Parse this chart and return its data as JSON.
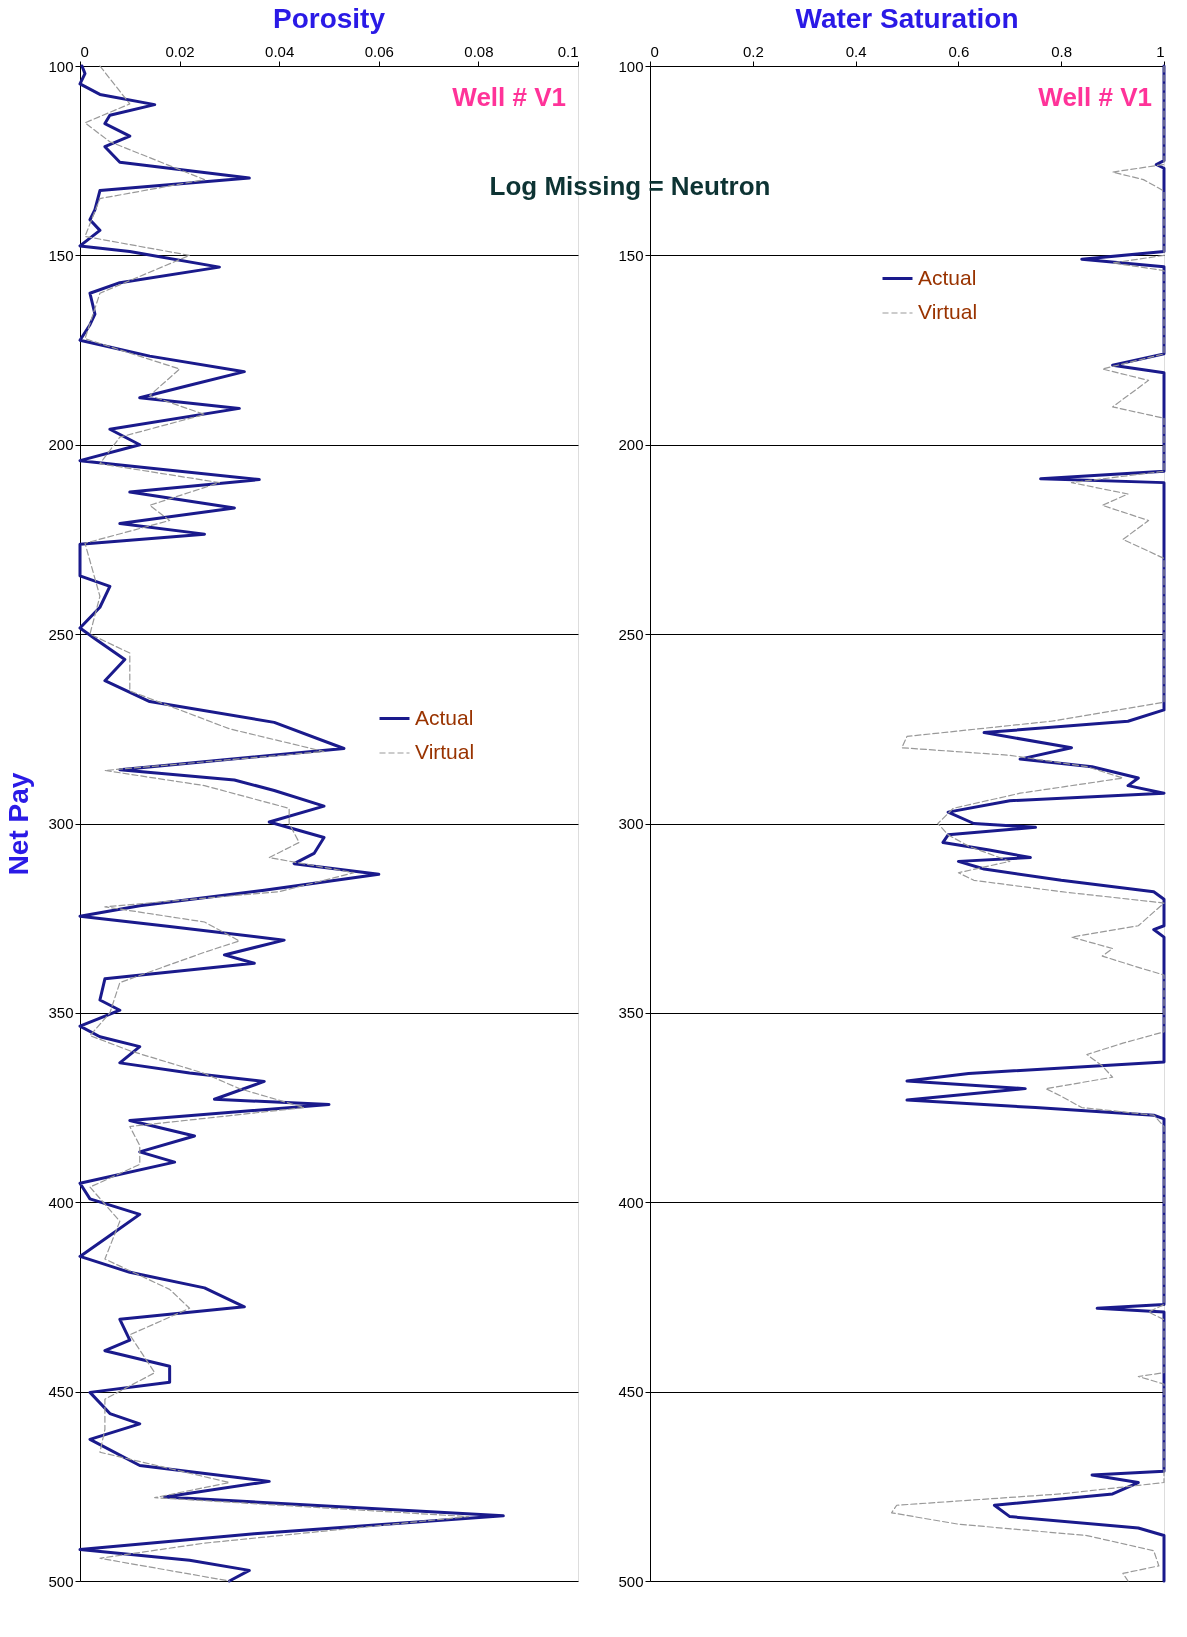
{
  "chart_data": [
    {
      "type": "line",
      "title": "Porosity",
      "ylabel": "Net Pay",
      "orientation": "horizontal",
      "xlim": [
        0,
        0.1
      ],
      "xticks": [
        0,
        0.02,
        0.04,
        0.06,
        0.08,
        0.1
      ],
      "ylim": [
        500,
        100
      ],
      "yticks": [
        100,
        150,
        200,
        250,
        300,
        350,
        400,
        450,
        500
      ],
      "grid": "y",
      "legend": "right",
      "annotations": [
        "Well  # V1"
      ],
      "series": [
        {
          "name": "Actual",
          "color": "#1a1a8c",
          "line_style": "solid",
          "x": [
            100,
            102,
            104.7,
            107.5,
            110.2,
            113,
            115.2,
            118.5,
            121.3,
            125.4,
            129.6,
            132.9,
            137.9,
            140.6,
            143.4,
            147.5,
            149,
            153.1,
            157.2,
            160,
            165.5,
            168.3,
            172.4,
            176.6,
            180.7,
            184.3,
            187.6,
            190.4,
            195.9,
            200,
            204.2,
            209.2,
            212.5,
            216.7,
            220.8,
            223.6,
            226.3,
            234.6,
            237.4,
            242.9,
            248.4,
            251.2,
            256.7,
            262.3,
            267.8,
            273.3,
            280.2,
            285.8,
            288.5,
            291.3,
            295.4,
            299.6,
            303.7,
            307.9,
            310.6,
            313.4,
            317.6,
            321.7,
            324.5,
            327.2,
            330.8,
            334.7,
            336.9,
            341,
            346.6,
            349.3,
            353.5,
            356.3,
            358.9,
            363.2,
            365.9,
            368.1,
            372.8,
            374.2,
            378.4,
            382.5,
            386.7,
            389.4,
            395,
            399.1,
            403.2,
            408.8,
            414.3,
            418.5,
            422.6,
            427.6,
            430.9,
            436.4,
            439.2,
            443.3,
            447.5,
            450.2,
            455.8,
            458.5,
            462.6,
            469.5,
            473.7,
            477.8,
            482.8,
            487.5,
            491.7,
            494.5,
            497.2,
            500
          ],
          "values": [
            0.0004,
            0.001,
            0.0,
            0.004,
            0.015,
            0.006,
            0.005,
            0.01,
            0.005,
            0.008,
            0.034,
            0.004,
            0.003,
            0.002,
            0.004,
            0.0,
            0.01,
            0.028,
            0.008,
            0.002,
            0.003,
            0.002,
            0.0,
            0.014,
            0.033,
            0.022,
            0.012,
            0.032,
            0.006,
            0.012,
            0.0,
            0.036,
            0.01,
            0.031,
            0.008,
            0.025,
            0.0,
            0.0,
            0.006,
            0.004,
            0.0,
            0.003,
            0.009,
            0.005,
            0.014,
            0.039,
            0.053,
            0.008,
            0.031,
            0.039,
            0.049,
            0.038,
            0.049,
            0.047,
            0.043,
            0.06,
            0.037,
            0.012,
            0.0,
            0.018,
            0.041,
            0.029,
            0.035,
            0.005,
            0.004,
            0.008,
            0.0,
            0.004,
            0.012,
            0.008,
            0.022,
            0.037,
            0.027,
            0.05,
            0.01,
            0.023,
            0.012,
            0.019,
            0.0,
            0.002,
            0.012,
            0.006,
            0.0,
            0.01,
            0.025,
            0.033,
            0.008,
            0.01,
            0.005,
            0.018,
            0.018,
            0.002,
            0.006,
            0.012,
            0.002,
            0.012,
            0.038,
            0.017,
            0.085,
            0.035,
            0.0,
            0.022,
            0.034,
            0.03
          ]
        },
        {
          "name": "Virtual",
          "color": "#999999",
          "line_style": "dashed",
          "x": [
            100,
            110,
            115,
            120,
            130,
            135,
            145,
            150,
            160,
            172,
            180,
            187,
            192,
            198,
            205,
            210,
            216,
            220,
            226,
            240,
            250,
            255,
            265,
            275,
            281,
            286,
            290,
            296,
            300,
            305,
            309,
            313,
            318,
            322,
            326,
            331,
            334,
            342,
            350,
            356,
            360,
            366,
            370,
            375,
            380,
            385,
            390,
            396,
            405,
            415,
            423,
            428,
            435,
            445,
            452,
            460,
            466,
            474,
            478,
            483,
            490,
            494,
            500
          ],
          "values": [
            0.004,
            0.01,
            0.001,
            0.006,
            0.025,
            0.004,
            0.001,
            0.022,
            0.004,
            0.001,
            0.02,
            0.014,
            0.025,
            0.008,
            0.004,
            0.028,
            0.014,
            0.018,
            0.001,
            0.004,
            0.002,
            0.01,
            0.01,
            0.03,
            0.049,
            0.005,
            0.025,
            0.042,
            0.042,
            0.044,
            0.038,
            0.055,
            0.04,
            0.005,
            0.025,
            0.032,
            0.025,
            0.008,
            0.006,
            0.002,
            0.01,
            0.025,
            0.032,
            0.045,
            0.01,
            0.012,
            0.012,
            0.002,
            0.008,
            0.005,
            0.018,
            0.022,
            0.01,
            0.015,
            0.005,
            0.005,
            0.004,
            0.03,
            0.015,
            0.078,
            0.025,
            0.004,
            0.03
          ]
        }
      ]
    },
    {
      "type": "line",
      "title": "Water Saturation",
      "orientation": "horizontal",
      "xlim": [
        0,
        1
      ],
      "xticks": [
        0,
        0.2,
        0.4,
        0.6,
        0.8,
        1
      ],
      "ylim": [
        500,
        100
      ],
      "yticks": [
        100,
        150,
        200,
        250,
        300,
        350,
        400,
        450,
        500
      ],
      "grid": "y",
      "legend": "top",
      "annotations": [
        "Well  # V1",
        "Log Missing = Neutron"
      ],
      "series": [
        {
          "name": "Actual",
          "color": "#1a1a8c",
          "line_style": "solid",
          "x": [
            100,
            125,
            126,
            127,
            149,
            151,
            153,
            176,
            179,
            181,
            207,
            209,
            210,
            270,
            273,
            276,
            280,
            283,
            285,
            288,
            290,
            292,
            294,
            297,
            300,
            301,
            303,
            305,
            307,
            309,
            310,
            312,
            315,
            318,
            320,
            327,
            328,
            330,
            363,
            366,
            368,
            370,
            373,
            375,
            377,
            378,
            427,
            428,
            429,
            471,
            472,
            474,
            477,
            480,
            483,
            486,
            488,
            500
          ],
          "values": [
            1,
            1,
            0.985,
            1,
            1,
            0.84,
            1,
            1,
            0.9,
            1,
            1,
            0.76,
            1,
            1,
            0.93,
            0.65,
            0.82,
            0.72,
            0.86,
            0.95,
            0.93,
            1,
            0.7,
            0.58,
            0.63,
            0.75,
            0.58,
            0.57,
            0.66,
            0.74,
            0.6,
            0.65,
            0.8,
            0.98,
            1,
            1,
            0.98,
            1,
            1,
            0.62,
            0.5,
            0.73,
            0.5,
            0.75,
            0.98,
            1,
            1,
            0.87,
            1,
            1,
            0.86,
            0.95,
            0.9,
            0.67,
            0.7,
            0.95,
            1,
            1
          ]
        },
        {
          "name": "Virtual",
          "color": "#999999",
          "line_style": "dashed",
          "x": [
            100,
            126,
            128,
            130,
            133,
            150,
            152,
            154,
            176,
            180,
            183,
            187,
            190,
            193,
            207,
            210,
            213,
            216,
            220,
            225,
            230,
            268,
            273,
            277,
            280,
            282,
            285,
            288,
            292,
            296,
            300,
            303,
            306,
            310,
            313,
            315,
            318,
            321,
            327,
            330,
            333,
            335,
            338,
            340,
            355,
            358,
            361,
            364,
            367,
            370,
            372,
            375,
            377,
            380,
            427,
            429,
            431,
            445,
            446,
            448,
            474,
            477,
            480,
            482,
            485,
            488,
            492,
            496,
            498,
            500
          ],
          "values": [
            1,
            1,
            0.9,
            0.96,
            1,
            1,
            0.9,
            1,
            1,
            0.88,
            0.97,
            0.93,
            0.9,
            1,
            1,
            0.82,
            0.93,
            0.88,
            0.97,
            0.92,
            1,
            1,
            0.78,
            0.5,
            0.49,
            0.7,
            0.85,
            0.92,
            0.72,
            0.59,
            0.56,
            0.58,
            0.62,
            0.7,
            0.6,
            0.63,
            0.8,
            1,
            0.95,
            0.82,
            0.9,
            0.88,
            0.95,
            1,
            1,
            0.92,
            0.85,
            0.88,
            0.9,
            0.77,
            0.8,
            0.84,
            0.98,
            1,
            1,
            0.97,
            1,
            1,
            0.95,
            1,
            1,
            0.8,
            0.48,
            0.47,
            0.6,
            0.85,
            0.98,
            0.99,
            0.92,
            0.93
          ]
        }
      ]
    }
  ]
}
